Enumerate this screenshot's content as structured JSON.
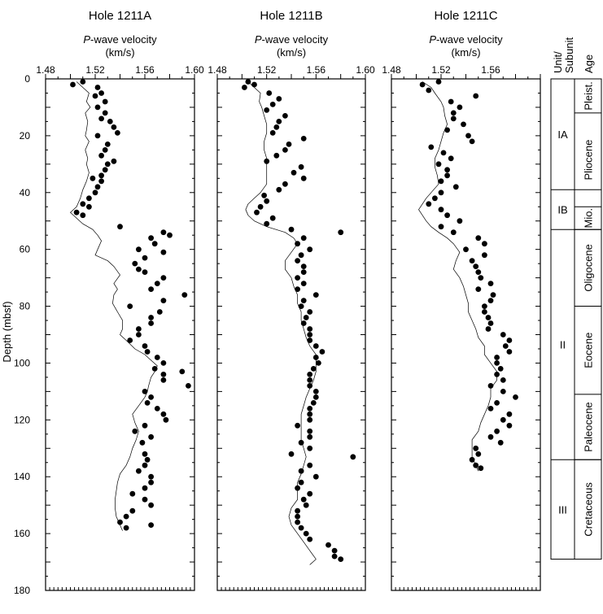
{
  "chart_data": {
    "type": "scatter",
    "ylabel": "Depth (mbsf)",
    "ylim": [
      0,
      180
    ],
    "yticks": [
      0,
      20,
      40,
      60,
      80,
      100,
      120,
      140,
      160,
      180
    ],
    "y_reversed": true,
    "panels": [
      {
        "title": "Hole 1211A",
        "xlabel_italic": "P",
        "xlabel_rest": "-wave velocity",
        "xunit": "(km/s)",
        "xlim": [
          1.48,
          1.6
        ],
        "xtick_labels": [
          "1.48",
          "1.52",
          "1.56",
          "1.60"
        ],
        "series": [
          {
            "kind": "line",
            "depth": [
              1,
              3,
              5,
              8,
              10,
              12,
              15,
              18,
              20,
              22,
              25,
              28,
              30,
              33,
              36,
              39,
              42,
              45,
              47,
              49,
              51,
              53,
              55,
              57,
              60,
              62,
              64,
              66,
              69,
              72,
              74,
              76,
              79,
              82,
              85,
              88,
              90,
              92,
              95,
              97,
              99,
              101,
              103,
              105,
              108,
              110,
              112,
              115,
              118,
              121,
              124,
              127,
              130,
              133,
              136,
              139,
              142,
              145,
              148,
              151,
              154,
              157,
              159
            ],
            "velocity": [
              1.505,
              1.51,
              1.515,
              1.513,
              1.516,
              1.512,
              1.514,
              1.513,
              1.512,
              1.515,
              1.512,
              1.514,
              1.513,
              1.515,
              1.513,
              1.51,
              1.508,
              1.505,
              1.5,
              1.505,
              1.51,
              1.518,
              1.522,
              1.525,
              1.522,
              1.52,
              1.53,
              1.535,
              1.54,
              1.535,
              1.538,
              1.535,
              1.534,
              1.538,
              1.542,
              1.542,
              1.54,
              1.545,
              1.552,
              1.56,
              1.565,
              1.57,
              1.568,
              1.565,
              1.563,
              1.562,
              1.56,
              1.555,
              1.55,
              1.552,
              1.555,
              1.553,
              1.55,
              1.548,
              1.545,
              1.54,
              1.538,
              1.537,
              1.536,
              1.536,
              1.537,
              1.54,
              1.542
            ]
          },
          {
            "kind": "points",
            "depth": [
              1,
              2,
              3,
              5,
              6,
              8,
              10,
              12,
              14,
              15,
              17,
              19,
              20,
              23,
              25,
              27,
              29,
              30,
              32,
              34,
              35,
              36,
              38,
              40,
              42,
              44,
              45,
              47,
              48,
              52,
              54,
              55,
              56,
              58,
              60,
              61,
              63,
              65,
              67,
              68,
              70,
              72,
              74,
              76,
              78,
              80,
              82,
              84,
              86,
              88,
              90,
              92,
              94,
              96,
              98,
              100,
              102,
              103,
              104,
              106,
              108,
              110,
              112,
              114,
              116,
              118,
              120,
              122,
              124,
              126,
              128,
              132,
              134,
              136,
              138,
              140,
              142,
              144,
              146,
              148,
              150,
              152,
              154,
              156,
              157,
              158
            ],
            "velocity": [
              1.51,
              1.502,
              1.522,
              1.525,
              1.52,
              1.528,
              1.522,
              1.528,
              1.525,
              1.532,
              1.535,
              1.538,
              1.522,
              1.53,
              1.528,
              1.525,
              1.535,
              1.53,
              1.528,
              1.525,
              1.518,
              1.525,
              1.522,
              1.52,
              1.515,
              1.51,
              1.515,
              1.505,
              1.51,
              1.54,
              1.575,
              1.58,
              1.565,
              1.568,
              1.555,
              1.575,
              1.56,
              1.552,
              1.555,
              1.56,
              1.575,
              1.57,
              1.565,
              1.592,
              1.575,
              1.548,
              1.572,
              1.565,
              1.565,
              1.555,
              1.555,
              1.548,
              1.56,
              1.562,
              1.57,
              1.575,
              1.568,
              1.59,
              1.575,
              1.575,
              1.595,
              1.56,
              1.565,
              1.562,
              1.57,
              1.575,
              1.577,
              1.56,
              1.552,
              1.565,
              1.558,
              1.56,
              1.562,
              1.56,
              1.555,
              1.565,
              1.565,
              1.56,
              1.55,
              1.56,
              1.565,
              1.55,
              1.545,
              1.54,
              1.565,
              1.545
            ]
          }
        ]
      },
      {
        "title": "Hole 1211B",
        "xlabel_italic": "P",
        "xlabel_rest": "-wave velocity",
        "xunit": "(km/s)",
        "xlim": [
          1.48,
          1.6
        ],
        "xtick_labels": [
          "1.48",
          "1.52",
          "1.56",
          "1.60"
        ],
        "series": [
          {
            "kind": "line",
            "depth": [
              1,
              3,
              5,
              8,
              10,
              13,
              16,
              19,
              22,
              25,
              28,
              31,
              34,
              37,
              40,
              42,
              44,
              46,
              48,
              50,
              52,
              54,
              56,
              58,
              61,
              64,
              67,
              70,
              73,
              76,
              79,
              82,
              85,
              88,
              91,
              94,
              97,
              100,
              103,
              106,
              109,
              112,
              115,
              118,
              121,
              124,
              127,
              130,
              133,
              136,
              139,
              142,
              145,
              148,
              151,
              154,
              157,
              160,
              163,
              166,
              169,
              171
            ],
            "velocity": [
              1.505,
              1.51,
              1.515,
              1.514,
              1.516,
              1.518,
              1.52,
              1.52,
              1.518,
              1.518,
              1.52,
              1.52,
              1.52,
              1.52,
              1.515,
              1.51,
              1.505,
              1.503,
              1.505,
              1.51,
              1.52,
              1.535,
              1.542,
              1.545,
              1.54,
              1.535,
              1.535,
              1.54,
              1.542,
              1.545,
              1.545,
              1.548,
              1.548,
              1.55,
              1.552,
              1.555,
              1.56,
              1.56,
              1.56,
              1.558,
              1.555,
              1.552,
              1.55,
              1.548,
              1.548,
              1.548,
              1.548,
              1.55,
              1.552,
              1.55,
              1.548,
              1.545,
              1.545,
              1.545,
              1.54,
              1.538,
              1.54,
              1.545,
              1.55,
              1.555,
              1.56,
              1.555
            ]
          },
          {
            "kind": "points",
            "depth": [
              1,
              2,
              3,
              5,
              7,
              9,
              11,
              13,
              15,
              17,
              19,
              21,
              23,
              25,
              27,
              29,
              31,
              33,
              35,
              37,
              39,
              41,
              43,
              45,
              47,
              49,
              51,
              53,
              54,
              56,
              58,
              60,
              62,
              64,
              66,
              68,
              70,
              72,
              74,
              76,
              78,
              80,
              82,
              84,
              86,
              88,
              90,
              92,
              94,
              96,
              98,
              100,
              102,
              104,
              106,
              108,
              110,
              112,
              114,
              116,
              118,
              120,
              122,
              124,
              126,
              128,
              130,
              132,
              133,
              136,
              138,
              140,
              142,
              144,
              146,
              148,
              150,
              152,
              154,
              156,
              158,
              160,
              162,
              164,
              166,
              168,
              169
            ],
            "velocity": [
              1.505,
              1.51,
              1.502,
              1.522,
              1.53,
              1.525,
              1.52,
              1.535,
              1.53,
              1.528,
              1.525,
              1.55,
              1.538,
              1.535,
              1.528,
              1.52,
              1.548,
              1.542,
              1.55,
              1.535,
              1.53,
              1.518,
              1.52,
              1.515,
              1.512,
              1.525,
              1.52,
              1.54,
              1.58,
              1.55,
              1.545,
              1.555,
              1.548,
              1.545,
              1.55,
              1.55,
              1.545,
              1.55,
              1.545,
              1.56,
              1.55,
              1.548,
              1.555,
              1.552,
              1.55,
              1.555,
              1.555,
              1.555,
              1.56,
              1.565,
              1.56,
              1.562,
              1.558,
              1.555,
              1.555,
              1.555,
              1.56,
              1.56,
              1.558,
              1.555,
              1.555,
              1.555,
              1.545,
              1.555,
              1.555,
              1.548,
              1.555,
              1.54,
              1.59,
              1.555,
              1.548,
              1.56,
              1.548,
              1.545,
              1.555,
              1.55,
              1.552,
              1.545,
              1.545,
              1.545,
              1.548,
              1.552,
              1.555,
              1.57,
              1.575,
              1.575,
              1.58
            ]
          }
        ]
      },
      {
        "title": "Hole 1211C",
        "xlabel_italic": "P",
        "xlabel_rest": "-wave velocity",
        "xunit": "(km/s)",
        "xlim": [
          1.48,
          1.6
        ],
        "xtick_labels": [
          "1.48",
          "1.52",
          "1.56"
        ],
        "series": [
          {
            "kind": "line",
            "depth": [
              1,
              3,
              5,
              8,
              10,
              13,
              16,
              19,
              22,
              25,
              28,
              31,
              34,
              37,
              40,
              42,
              44,
              46,
              48,
              50,
              52,
              54,
              56,
              58,
              61,
              64,
              67,
              70,
              73,
              76,
              79,
              82,
              85,
              88,
              91,
              94,
              97,
              100,
              103,
              106,
              109,
              112,
              115,
              118,
              121,
              124,
              127,
              130,
              133,
              136,
              138
            ],
            "velocity": [
              1.505,
              1.512,
              1.515,
              1.52,
              1.522,
              1.523,
              1.525,
              1.522,
              1.52,
              1.518,
              1.515,
              1.515,
              1.517,
              1.518,
              1.512,
              1.508,
              1.505,
              1.502,
              1.505,
              1.508,
              1.512,
              1.518,
              1.525,
              1.53,
              1.535,
              1.532,
              1.53,
              1.535,
              1.538,
              1.54,
              1.542,
              1.542,
              1.545,
              1.548,
              1.55,
              1.555,
              1.555,
              1.56,
              1.565,
              1.565,
              1.56,
              1.56,
              1.558,
              1.555,
              1.552,
              1.55,
              1.545,
              1.545,
              1.545,
              1.548,
              1.55
            ]
          },
          {
            "kind": "points",
            "depth": [
              1,
              2,
              4,
              6,
              8,
              10,
              12,
              14,
              16,
              18,
              20,
              22,
              24,
              26,
              28,
              30,
              32,
              34,
              36,
              38,
              40,
              42,
              44,
              46,
              48,
              50,
              52,
              54,
              56,
              58,
              60,
              62,
              64,
              66,
              68,
              70,
              72,
              74,
              76,
              78,
              80,
              82,
              84,
              86,
              88,
              90,
              92,
              94,
              96,
              98,
              100,
              102,
              104,
              106,
              108,
              110,
              112,
              114,
              116,
              118,
              120,
              122,
              124,
              126,
              128,
              130,
              132,
              134,
              136,
              137
            ],
            "velocity": [
              1.518,
              1.505,
              1.51,
              1.548,
              1.528,
              1.535,
              1.53,
              1.53,
              1.538,
              1.525,
              1.542,
              1.545,
              1.512,
              1.522,
              1.528,
              1.518,
              1.525,
              1.525,
              1.52,
              1.532,
              1.52,
              1.515,
              1.51,
              1.52,
              1.525,
              1.535,
              1.52,
              1.53,
              1.55,
              1.555,
              1.54,
              1.555,
              1.545,
              1.548,
              1.55,
              1.552,
              1.56,
              1.55,
              1.562,
              1.56,
              1.555,
              1.555,
              1.558,
              1.56,
              1.558,
              1.57,
              1.575,
              1.572,
              1.575,
              1.565,
              1.565,
              1.568,
              1.565,
              1.57,
              1.56,
              1.57,
              1.58,
              1.565,
              1.56,
              1.575,
              1.57,
              1.575,
              1.565,
              1.56,
              1.568,
              1.548,
              1.55,
              1.545,
              1.548,
              1.552
            ]
          }
        ]
      }
    ]
  },
  "strat_column": {
    "header_unit": "Unit/\nSubunit",
    "header_age": "Age",
    "units": [
      {
        "label": "IA",
        "top": 0,
        "bottom": 39
      },
      {
        "label": "IB",
        "top": 39,
        "bottom": 53
      },
      {
        "label": "II",
        "top": 53,
        "bottom": 134
      },
      {
        "label": "III",
        "top": 134,
        "bottom": 169
      }
    ],
    "ages": [
      {
        "label": "Pleist.",
        "top": 0,
        "bottom": 12
      },
      {
        "label": "Pliocene",
        "top": 12,
        "bottom": 45
      },
      {
        "label": "Mio.",
        "top": 45,
        "bottom": 53
      },
      {
        "label": "Oligocene",
        "top": 53,
        "bottom": 80
      },
      {
        "label": "Eocene",
        "top": 80,
        "bottom": 111
      },
      {
        "label": "Paleocene",
        "top": 111,
        "bottom": 134
      },
      {
        "label": "Cretaceous",
        "top": 134,
        "bottom": 169
      }
    ]
  }
}
